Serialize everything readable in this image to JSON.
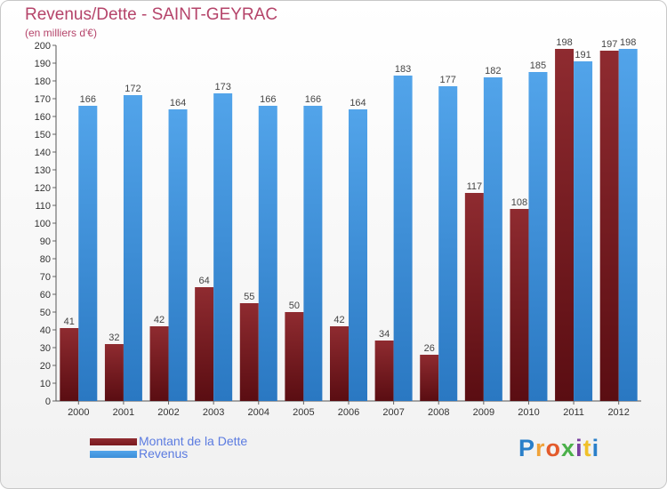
{
  "chart_data": {
    "type": "bar",
    "title": "Revenus/Dette - SAINT-GEYRAC",
    "subtitle": "(en milliers d'€)",
    "categories": [
      "2000",
      "2001",
      "2002",
      "2003",
      "2004",
      "2005",
      "2006",
      "2007",
      "2008",
      "2009",
      "2010",
      "2011",
      "2012"
    ],
    "series": [
      {
        "name": "Montant de la Dette",
        "color": "#7a1a1f",
        "values": [
          41,
          32,
          42,
          64,
          55,
          50,
          42,
          34,
          26,
          117,
          108,
          198,
          197
        ]
      },
      {
        "name": "Revenus",
        "color": "#3d8fd8",
        "values": [
          166,
          172,
          164,
          173,
          166,
          166,
          164,
          183,
          177,
          182,
          185,
          191,
          198
        ]
      }
    ],
    "ylim": [
      0,
      200
    ],
    "ytick_step": 10,
    "grid": false,
    "legend_position": "bottom-left",
    "xlabel": "",
    "ylabel": ""
  },
  "branding": {
    "logo_text": "Proxiti",
    "logo_letters": [
      "P",
      "r",
      "o",
      "x",
      "i",
      "t",
      "i"
    ],
    "logo_colors": [
      "#2a7fc9",
      "#f0a33a",
      "#e35a2b",
      "#4bb04a",
      "#7a3fa0",
      "#f0c02a",
      "#2a7fc9"
    ]
  }
}
